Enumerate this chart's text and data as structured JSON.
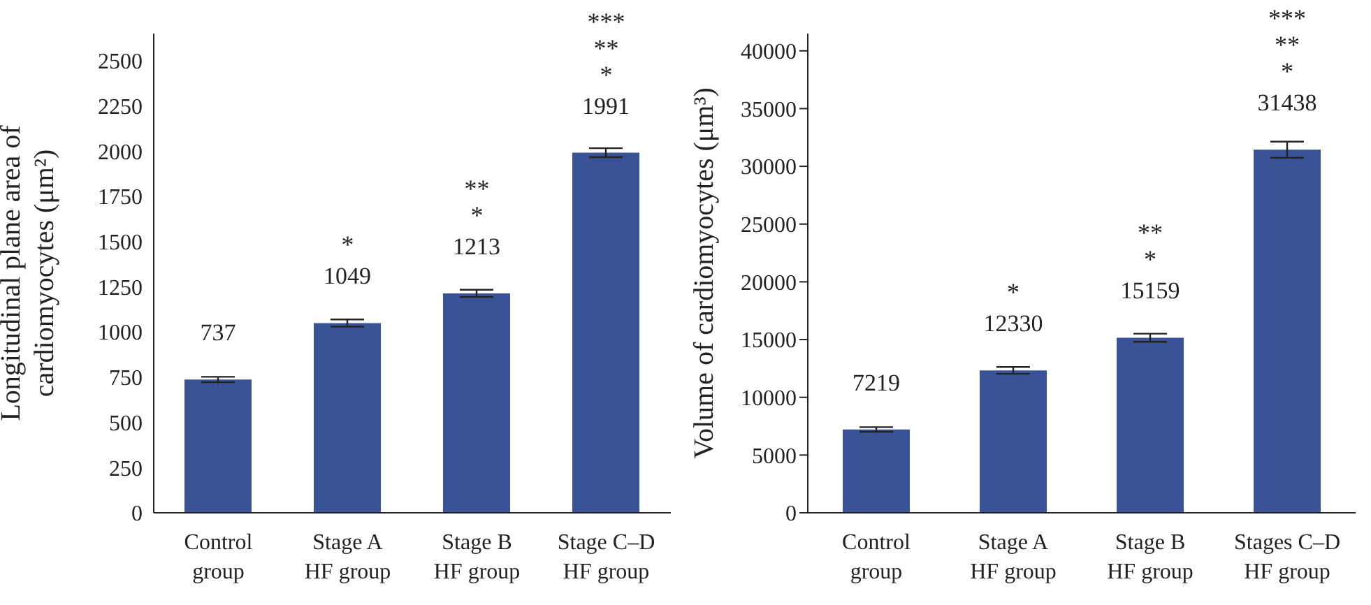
{
  "chart_data": [
    {
      "type": "bar",
      "ylabel": "Longitudinal plane area of\ncardiomyocytes (μm²)",
      "categories": [
        "Control\ngroup",
        "Stage A\nHF group",
        "Stage B\nHF group",
        "Stage C–D\nHF group"
      ],
      "values": [
        737,
        1049,
        1213,
        1991
      ],
      "errors": [
        15,
        20,
        20,
        25
      ],
      "color": "#3a5396",
      "ylim": [
        0,
        2650
      ],
      "yticks": [
        0,
        250,
        500,
        750,
        1000,
        1250,
        1500,
        1750,
        2000,
        2250,
        2500
      ],
      "data_labels": true,
      "grid": false,
      "legend": false,
      "annotations": [
        "***\n**\n*",
        "**\n*",
        "*"
      ]
    },
    {
      "type": "bar",
      "ylabel": "Volume of cardiomyocytes (μm³)",
      "categories": [
        "Control\ngroup",
        "Stage A\nHF group",
        "Stage B\nHF group",
        "Stages C–D\nHF group"
      ],
      "values": [
        7219,
        12330,
        15159,
        31438
      ],
      "errors": [
        200,
        300,
        350,
        700
      ],
      "color": "#3a5396",
      "ylim": [
        0,
        41500
      ],
      "yticks": [
        0,
        5000,
        10000,
        15000,
        20000,
        25000,
        30000,
        35000,
        40000
      ],
      "data_labels": true,
      "grid": false,
      "legend": false,
      "annotations": [
        "***\n**\n*",
        "**\n*",
        "*"
      ]
    }
  ]
}
